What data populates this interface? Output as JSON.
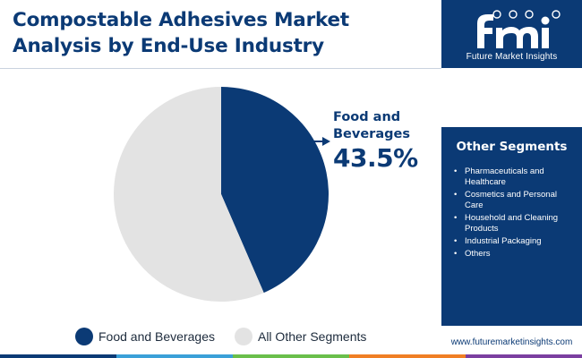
{
  "title_line1": "Compostable Adhesives Market",
  "title_line2": "Analysis by End-Use Industry",
  "chart_data": {
    "type": "pie",
    "title": "Compostable Adhesives Market Analysis by End-Use Industry",
    "slices": [
      {
        "label": "Food and Beverages",
        "value": 43.5,
        "color": "#0b3a75"
      },
      {
        "label": "All Other Segments",
        "value": 56.5,
        "color": "#e3e3e3"
      }
    ],
    "legend_position": "bottom",
    "annotations": [
      {
        "label": "Food and Beverages",
        "value_text": "43.5%"
      }
    ]
  },
  "callout": {
    "label": "Food and Beverages",
    "value": "43.5%"
  },
  "legend": [
    {
      "label": "Food and Beverages",
      "color": "#0b3a75"
    },
    {
      "label": "All Other Segments",
      "color": "#e3e3e3"
    }
  ],
  "sidebar": {
    "logo_text": "Future Market Insights",
    "segments_heading": "Other Segments",
    "segments": [
      "Pharmaceuticals and Healthcare",
      "Cosmetics and Personal Care",
      "Household and Cleaning Products",
      "Industrial Packaging",
      "Others"
    ],
    "website": "www.futuremarketinsights.com"
  },
  "colors": {
    "brand_navy": "#0b3a75",
    "slice_grey": "#e3e3e3",
    "bar_segments": [
      "#0b3a75",
      "#3aa0d8",
      "#6abf4b",
      "#f07f24",
      "#7b3fa0"
    ]
  },
  "icons": [
    "fmi-logo-icon",
    "callout-arrow-icon"
  ]
}
